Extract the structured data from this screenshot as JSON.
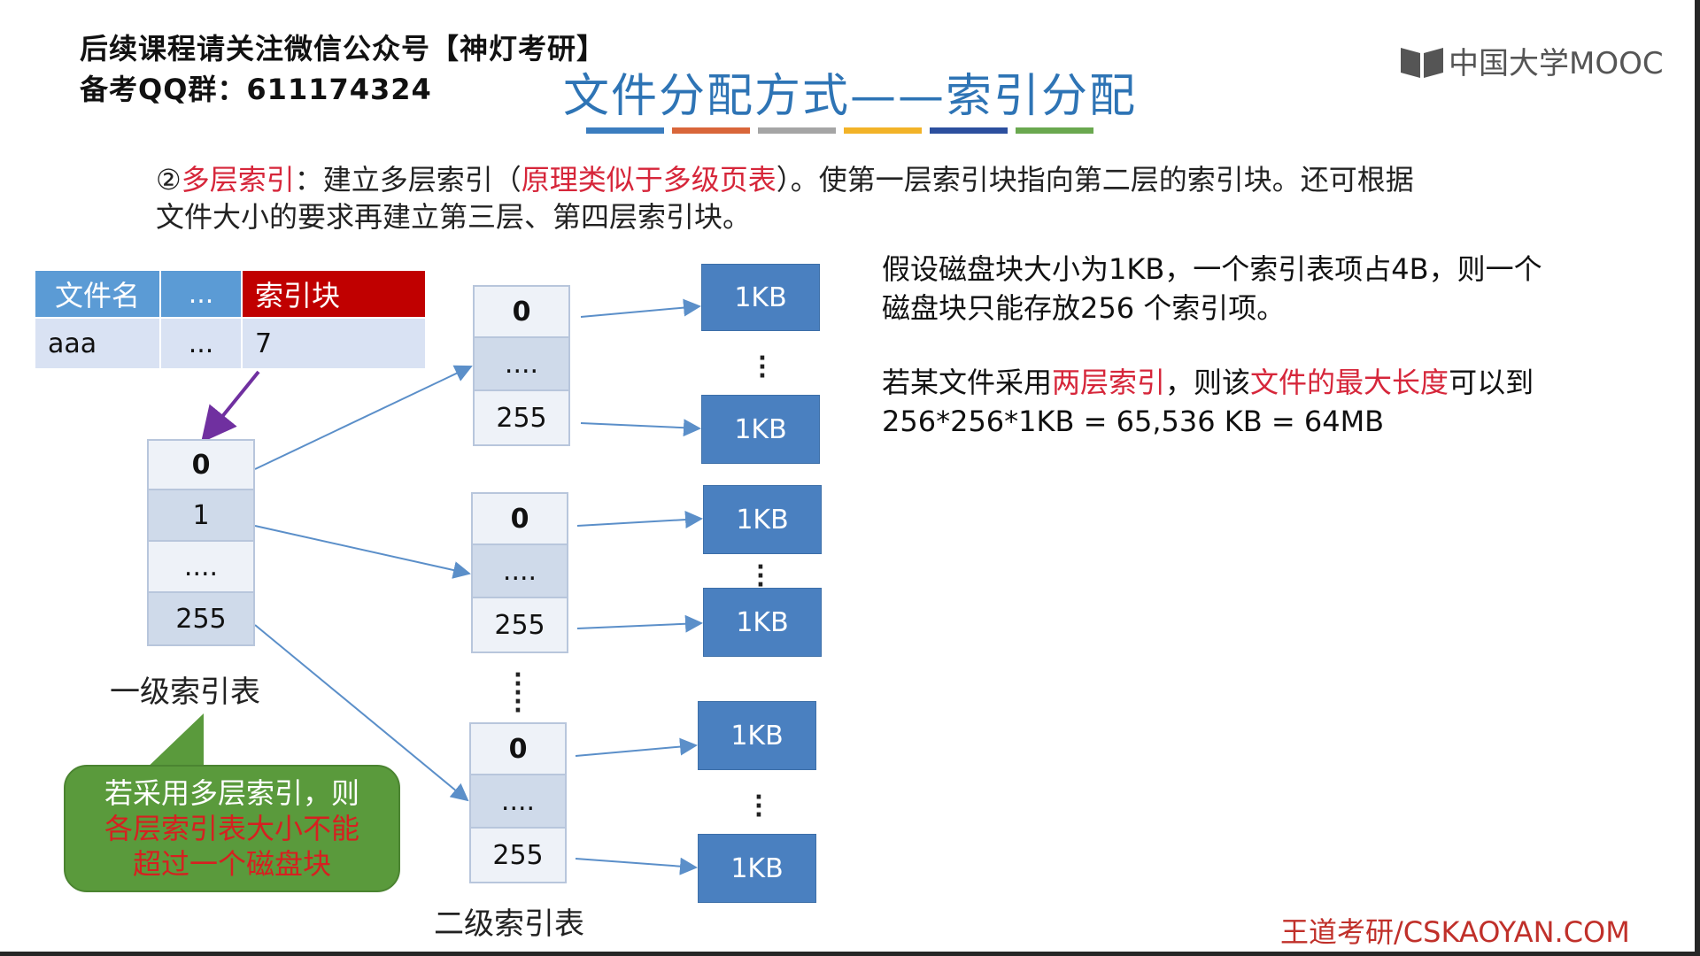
{
  "header": {
    "line1": "后续课程请关注微信公众号【神灯考研】",
    "line2": "备考QQ群：611174324"
  },
  "logo": {
    "text": "中国大学MOOC"
  },
  "title": "文件分配方式——索引分配",
  "title_bar_colors": [
    "#3b7dbf",
    "#d9663a",
    "#a5a5a5",
    "#f2b328",
    "#2c4f9e",
    "#6aa84f"
  ],
  "intro": {
    "num": "②",
    "term": "多层索引",
    "t1": "：建立多层索引（",
    "hl": "原理类似于多级页表",
    "t2": "）。使第一层索引块指向第二层的索引块。还可根据",
    "line2": "文件大小的要求再建立第三层、第四层索引块。"
  },
  "dir_table": {
    "headers": [
      "文件名",
      "...",
      "索引块"
    ],
    "row": [
      "aaa",
      "...",
      "7"
    ]
  },
  "level1": {
    "cells": [
      "0",
      "1",
      "....",
      "255"
    ],
    "label": "一级索引表"
  },
  "level2": {
    "tables": [
      {
        "cells": [
          "0",
          "....",
          "255"
        ]
      },
      {
        "cells": [
          "0",
          "....",
          "255"
        ]
      },
      {
        "cells": [
          "0",
          "....",
          "255"
        ]
      }
    ],
    "label": "二级索引表"
  },
  "blocks": {
    "label": "1KB"
  },
  "callout": {
    "line1": "若采用多层索引，则",
    "line2": "各层索引表大小不能",
    "line3": "超过一个磁盘块"
  },
  "right_text": {
    "p1_line1": "假设磁盘块大小为1KB，一个索引表项占4B，则一个",
    "p1_line2": "磁盘块只能存放256 个索引项。",
    "p2_a": "若某文件采用",
    "p2_hl1": "两层索引",
    "p2_b": "，则该",
    "p2_hl2": "文件的最大长度",
    "p2_c": "可以到",
    "p2_line2": "256*256*1KB = 65,536 KB = 64MB"
  },
  "footer": "王道考研/CSKAOYAN.COM",
  "colors": {
    "title_blue": "#2e74b5",
    "highlight_red": "#d6263a",
    "header_blue": "#5b9bd5",
    "header_red": "#c00000",
    "block_blue": "#4a80c0",
    "callout_green": "#5a9a3c",
    "pointer_purple": "#7030a0"
  }
}
